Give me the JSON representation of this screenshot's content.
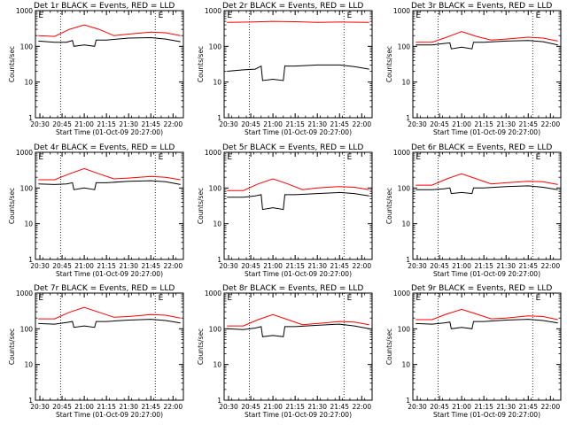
{
  "colors": {
    "events": "#000000",
    "lld": "#ff0000",
    "axes": "#000000",
    "background": "#ffffff"
  },
  "chart_data": [
    {
      "type": "line",
      "title": "Det 1r BLACK = Events, RED = LLD",
      "xlabel": "Start Time (01-Oct-09 20:27:00)",
      "ylabel": "Counts/sec",
      "xlim": [
        "20:27",
        "22:07"
      ],
      "ylim": [
        1,
        1000
      ],
      "yscale": "log",
      "xticks": [
        "20:30",
        "20:45",
        "21:00",
        "21:15",
        "21:30",
        "21:45",
        "22:00"
      ],
      "yticks": [
        "1",
        "10",
        "100",
        "1000"
      ],
      "vlines": [
        "20:44",
        "21:48"
      ],
      "flags": [
        {
          "text": "E",
          "x": "20:29"
        },
        {
          "text": "E",
          "x": "21:50"
        }
      ],
      "series": [
        {
          "name": "Events",
          "color": "#000000",
          "x": [
            "20:29",
            "20:40",
            "20:48",
            "20:52",
            "20:53",
            "21:00",
            "21:07",
            "21:08",
            "21:15",
            "21:30",
            "21:45",
            "21:55",
            "22:05"
          ],
          "y": [
            140,
            130,
            130,
            145,
            100,
            110,
            100,
            150,
            150,
            170,
            175,
            160,
            135
          ]
        },
        {
          "name": "LLD",
          "color": "#ff0000",
          "x": [
            "20:29",
            "20:40",
            "20:50",
            "21:00",
            "21:10",
            "21:20",
            "21:30",
            "21:45",
            "21:55",
            "22:05"
          ],
          "y": [
            200,
            190,
            300,
            400,
            300,
            200,
            220,
            250,
            240,
            200
          ]
        }
      ]
    },
    {
      "type": "line",
      "title": "Det 2r BLACK = Events, RED = LLD",
      "xlabel": "Start Time (01-Oct-09 20:27:00)",
      "ylabel": "Counts/sec",
      "xlim": [
        "20:27",
        "22:07"
      ],
      "ylim": [
        1,
        1000
      ],
      "yscale": "log",
      "xticks": [
        "20:30",
        "20:45",
        "21:00",
        "21:15",
        "21:30",
        "21:45",
        "22:00"
      ],
      "yticks": [
        "1",
        "10",
        "100",
        "1000"
      ],
      "vlines": [
        "20:44",
        "21:48"
      ],
      "flags": [
        {
          "text": "E",
          "x": "20:29"
        },
        {
          "text": "E",
          "x": "21:50"
        }
      ],
      "series": [
        {
          "name": "Events",
          "color": "#000000",
          "x": [
            "20:29",
            "20:40",
            "20:48",
            "20:52",
            "20:53",
            "21:00",
            "21:07",
            "21:08",
            "21:15",
            "21:30",
            "21:45",
            "21:55",
            "22:05"
          ],
          "y": [
            20,
            22,
            23,
            28,
            11,
            12,
            11,
            28,
            28,
            30,
            30,
            27,
            23
          ]
        },
        {
          "name": "LLD",
          "color": "#ff0000",
          "x": [
            "20:29",
            "20:45",
            "21:00",
            "21:15",
            "21:30",
            "21:45",
            "22:05"
          ],
          "y": [
            470,
            480,
            500,
            490,
            470,
            480,
            470
          ]
        }
      ]
    },
    {
      "type": "line",
      "title": "Det 3r BLACK = Events, RED = LLD",
      "xlabel": "Start Time (01-Oct-09 20:27:00)",
      "ylabel": "Counts/sec",
      "xlim": [
        "20:27",
        "22:07"
      ],
      "ylim": [
        1,
        1000
      ],
      "yscale": "log",
      "xticks": [
        "20:30",
        "20:45",
        "21:00",
        "21:15",
        "21:30",
        "21:45",
        "22:00"
      ],
      "yticks": [
        "1",
        "10",
        "100",
        "1000"
      ],
      "vlines": [
        "20:44",
        "21:48"
      ],
      "flags": [
        {
          "text": "E",
          "x": "20:29"
        },
        {
          "text": "E",
          "x": "21:50"
        }
      ],
      "series": [
        {
          "name": "Events",
          "color": "#000000",
          "x": [
            "20:29",
            "20:40",
            "20:48",
            "20:52",
            "20:53",
            "21:00",
            "21:07",
            "21:08",
            "21:15",
            "21:30",
            "21:45",
            "21:55",
            "22:05"
          ],
          "y": [
            110,
            110,
            120,
            125,
            85,
            95,
            85,
            130,
            130,
            140,
            145,
            135,
            110
          ]
        },
        {
          "name": "LLD",
          "color": "#ff0000",
          "x": [
            "20:29",
            "20:40",
            "20:50",
            "21:00",
            "21:10",
            "21:20",
            "21:30",
            "21:45",
            "21:55",
            "22:05"
          ],
          "y": [
            130,
            130,
            180,
            260,
            190,
            150,
            160,
            180,
            170,
            140
          ]
        }
      ]
    },
    {
      "type": "line",
      "title": "Det 4r BLACK = Events, RED = LLD",
      "xlabel": "Start Time (01-Oct-09 20:27:00)",
      "ylabel": "Counts/sec",
      "xlim": [
        "20:27",
        "22:07"
      ],
      "ylim": [
        1,
        1000
      ],
      "yscale": "log",
      "xticks": [
        "20:30",
        "20:45",
        "21:00",
        "21:15",
        "21:30",
        "21:45",
        "22:00"
      ],
      "yticks": [
        "1",
        "10",
        "100",
        "1000"
      ],
      "vlines": [
        "20:44",
        "21:48"
      ],
      "flags": [
        {
          "text": "E",
          "x": "20:29"
        },
        {
          "text": "E",
          "x": "21:50"
        }
      ],
      "series": [
        {
          "name": "Events",
          "color": "#000000",
          "x": [
            "20:29",
            "20:40",
            "20:48",
            "20:52",
            "20:53",
            "21:00",
            "21:07",
            "21:08",
            "21:15",
            "21:30",
            "21:45",
            "21:55",
            "22:05"
          ],
          "y": [
            130,
            125,
            130,
            140,
            90,
            100,
            90,
            140,
            140,
            155,
            160,
            150,
            125
          ]
        },
        {
          "name": "LLD",
          "color": "#ff0000",
          "x": [
            "20:29",
            "20:40",
            "20:50",
            "21:00",
            "21:10",
            "21:20",
            "21:30",
            "21:45",
            "21:55",
            "22:05"
          ],
          "y": [
            170,
            170,
            250,
            350,
            250,
            180,
            190,
            210,
            200,
            170
          ]
        }
      ]
    },
    {
      "type": "line",
      "title": "Det 5r BLACK = Events, RED = LLD",
      "xlabel": "Start Time (01-Oct-09 20:27:00)",
      "ylabel": "Counts/sec",
      "xlim": [
        "20:27",
        "22:07"
      ],
      "ylim": [
        1,
        1000
      ],
      "yscale": "log",
      "xticks": [
        "20:30",
        "20:45",
        "21:00",
        "21:15",
        "21:30",
        "21:45",
        "22:00"
      ],
      "yticks": [
        "1",
        "10",
        "100",
        "1000"
      ],
      "vlines": [
        "20:44",
        "21:48"
      ],
      "flags": [
        {
          "text": "E",
          "x": "20:29"
        },
        {
          "text": "E",
          "x": "21:50"
        }
      ],
      "series": [
        {
          "name": "Events",
          "color": "#000000",
          "x": [
            "20:29",
            "20:40",
            "20:48",
            "20:52",
            "20:53",
            "21:00",
            "21:07",
            "21:08",
            "21:15",
            "21:30",
            "21:45",
            "21:55",
            "22:05"
          ],
          "y": [
            55,
            55,
            60,
            65,
            25,
            28,
            25,
            65,
            65,
            70,
            75,
            70,
            60
          ]
        },
        {
          "name": "LLD",
          "color": "#ff0000",
          "x": [
            "20:29",
            "20:40",
            "20:50",
            "21:00",
            "21:10",
            "21:20",
            "21:30",
            "21:45",
            "21:55",
            "22:05"
          ],
          "y": [
            85,
            85,
            130,
            180,
            130,
            90,
            100,
            110,
            105,
            90
          ]
        }
      ]
    },
    {
      "type": "line",
      "title": "Det 6r BLACK = Events, RED = LLD",
      "xlabel": "Start Time (01-Oct-09 20:27:00)",
      "ylabel": "Counts/sec",
      "xlim": [
        "20:27",
        "22:07"
      ],
      "ylim": [
        1,
        1000
      ],
      "yscale": "log",
      "xticks": [
        "20:30",
        "20:45",
        "21:00",
        "21:15",
        "21:30",
        "21:45",
        "22:00"
      ],
      "yticks": [
        "1",
        "10",
        "100",
        "1000"
      ],
      "vlines": [
        "20:44",
        "21:48"
      ],
      "flags": [
        {
          "text": "E",
          "x": "20:29"
        },
        {
          "text": "E",
          "x": "21:50"
        }
      ],
      "series": [
        {
          "name": "Events",
          "color": "#000000",
          "x": [
            "20:29",
            "20:40",
            "20:48",
            "20:52",
            "20:53",
            "21:00",
            "21:07",
            "21:08",
            "21:15",
            "21:30",
            "21:45",
            "21:55",
            "22:05"
          ],
          "y": [
            90,
            90,
            95,
            100,
            70,
            75,
            70,
            100,
            100,
            110,
            115,
            105,
            90
          ]
        },
        {
          "name": "LLD",
          "color": "#ff0000",
          "x": [
            "20:29",
            "20:40",
            "20:50",
            "21:00",
            "21:10",
            "21:20",
            "21:30",
            "21:45",
            "21:55",
            "22:05"
          ],
          "y": [
            120,
            120,
            180,
            250,
            180,
            130,
            140,
            155,
            150,
            125
          ]
        }
      ]
    },
    {
      "type": "line",
      "title": "Det 7r BLACK = Events, RED = LLD",
      "xlabel": "Start Time (01-Oct-09 20:27:00)",
      "ylabel": "Counts/sec",
      "xlim": [
        "20:27",
        "22:07"
      ],
      "ylim": [
        1,
        1000
      ],
      "yscale": "log",
      "xticks": [
        "20:30",
        "20:45",
        "21:00",
        "21:15",
        "21:30",
        "21:45",
        "22:00"
      ],
      "yticks": [
        "1",
        "10",
        "100",
        "1000"
      ],
      "vlines": [
        "20:44",
        "21:48"
      ],
      "flags": [
        {
          "text": "E",
          "x": "20:29"
        },
        {
          "text": "E",
          "x": "21:50"
        }
      ],
      "series": [
        {
          "name": "Events",
          "color": "#000000",
          "x": [
            "20:29",
            "20:40",
            "20:48",
            "20:52",
            "20:53",
            "21:00",
            "21:07",
            "21:08",
            "21:15",
            "21:30",
            "21:45",
            "21:55",
            "22:05"
          ],
          "y": [
            140,
            135,
            150,
            160,
            110,
            120,
            110,
            160,
            160,
            175,
            185,
            170,
            145
          ]
        },
        {
          "name": "LLD",
          "color": "#ff0000",
          "x": [
            "20:29",
            "20:40",
            "20:50",
            "21:00",
            "21:10",
            "21:20",
            "21:30",
            "21:45",
            "21:55",
            "22:05"
          ],
          "y": [
            190,
            190,
            290,
            400,
            290,
            210,
            220,
            250,
            240,
            200
          ]
        }
      ]
    },
    {
      "type": "line",
      "title": "Det 8r BLACK = Events, RED = LLD",
      "xlabel": "Start Time (01-Oct-09 20:27:00)",
      "ylabel": "Counts/sec",
      "xlim": [
        "20:27",
        "22:07"
      ],
      "ylim": [
        1,
        1000
      ],
      "yscale": "log",
      "xticks": [
        "20:30",
        "20:45",
        "21:00",
        "21:15",
        "21:30",
        "21:45",
        "22:00"
      ],
      "yticks": [
        "1",
        "10",
        "100",
        "1000"
      ],
      "vlines": [
        "20:44",
        "21:48"
      ],
      "flags": [
        {
          "text": "E",
          "x": "20:29"
        },
        {
          "text": "E",
          "x": "21:50"
        }
      ],
      "series": [
        {
          "name": "Events",
          "color": "#000000",
          "x": [
            "20:29",
            "20:40",
            "20:48",
            "20:52",
            "20:53",
            "21:00",
            "21:07",
            "21:08",
            "21:15",
            "21:30",
            "21:45",
            "21:55",
            "22:05"
          ],
          "y": [
            100,
            95,
            105,
            115,
            60,
            65,
            60,
            115,
            115,
            125,
            135,
            120,
            100
          ]
        },
        {
          "name": "LLD",
          "color": "#ff0000",
          "x": [
            "20:29",
            "20:40",
            "20:50",
            "21:00",
            "21:10",
            "21:20",
            "21:30",
            "21:45",
            "21:55",
            "22:05"
          ],
          "y": [
            120,
            120,
            180,
            250,
            180,
            130,
            140,
            160,
            155,
            130
          ]
        }
      ]
    },
    {
      "type": "line",
      "title": "Det 9r BLACK = Events, RED = LLD",
      "xlabel": "Start Time (01-Oct-09 20:27:00)",
      "ylabel": "Counts/sec",
      "xlim": [
        "20:27",
        "22:07"
      ],
      "ylim": [
        1,
        1000
      ],
      "yscale": "log",
      "xticks": [
        "20:30",
        "20:45",
        "21:00",
        "21:15",
        "21:30",
        "21:45",
        "22:00"
      ],
      "yticks": [
        "1",
        "10",
        "100",
        "1000"
      ],
      "vlines": [
        "20:44",
        "21:48"
      ],
      "flags": [
        {
          "text": "E",
          "x": "20:29"
        },
        {
          "text": "E",
          "x": "21:50"
        }
      ],
      "series": [
        {
          "name": "Events",
          "color": "#000000",
          "x": [
            "20:29",
            "20:40",
            "20:48",
            "20:52",
            "20:53",
            "21:00",
            "21:07",
            "21:08",
            "21:15",
            "21:30",
            "21:45",
            "21:55",
            "22:05"
          ],
          "y": [
            140,
            135,
            145,
            155,
            100,
            110,
            100,
            160,
            160,
            175,
            185,
            170,
            145
          ]
        },
        {
          "name": "LLD",
          "color": "#ff0000",
          "x": [
            "20:29",
            "20:40",
            "20:50",
            "21:00",
            "21:10",
            "21:20",
            "21:30",
            "21:45",
            "21:55",
            "22:05"
          ],
          "y": [
            180,
            180,
            260,
            350,
            260,
            190,
            200,
            230,
            220,
            180
          ]
        }
      ]
    }
  ]
}
